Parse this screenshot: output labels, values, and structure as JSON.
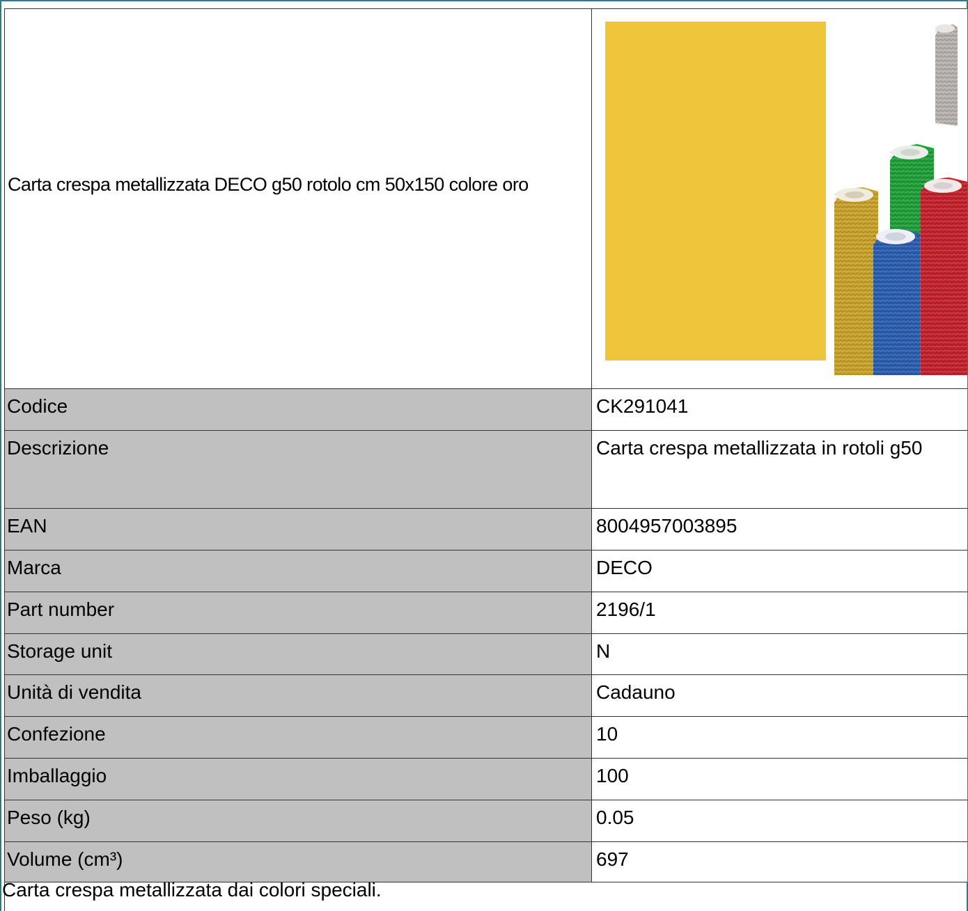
{
  "product": {
    "title": "Carta crespa metallizzata DECO g50 rotolo cm 50x150 colore oro",
    "image_icon": "crepe-paper-rolls-image",
    "image_colors": {
      "sheet": "#efc53a",
      "roll_gold": "#c9a32c",
      "roll_blue": "#2b5fb0",
      "roll_green": "#22a03a",
      "roll_red": "#c5222c",
      "roll_silver": "#b9b3ad"
    }
  },
  "specs": [
    {
      "label": "Codice",
      "value": "CK291041"
    },
    {
      "label": "Descrizione",
      "value": "Carta crespa metallizzata in rotoli g50"
    },
    {
      "label": "EAN",
      "value": "8004957003895"
    },
    {
      "label": "Marca",
      "value": "DECO"
    },
    {
      "label": "Part number",
      "value": "2196/1"
    },
    {
      "label": "Storage unit",
      "value": "N"
    },
    {
      "label": "Unità di vendita",
      "value": "Cadauno"
    },
    {
      "label": "Confezione",
      "value": "10"
    },
    {
      "label": "Imballaggio",
      "value": "100"
    },
    {
      "label": "Peso (kg)",
      "value": "0.05"
    },
    {
      "label": "Volume (cm³)",
      "value": "697"
    }
  ],
  "footer": {
    "text": "Carta crespa metallizzata dai colori speciali."
  },
  "colors": {
    "border_accent": "#2c7a8a",
    "label_background": "#c0c0c0"
  }
}
